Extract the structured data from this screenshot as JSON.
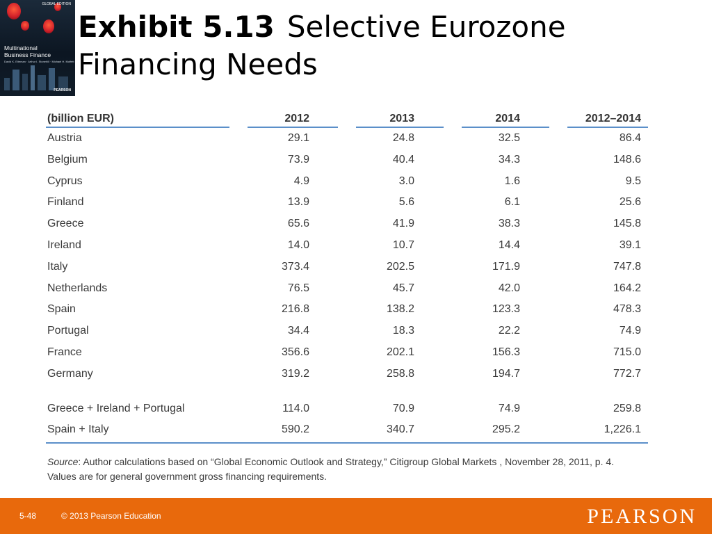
{
  "cover": {
    "edition": "GLOBAL EDITION",
    "title_line1": "Multinational",
    "title_line2": "Business Finance",
    "authors": "David K. Eiteman · Arthur I. Stonehill · Michael H. Moffett",
    "publisher": "PEARSON"
  },
  "title": {
    "bold": "Exhibit 5.13",
    "rest": "Selective Eurozone Financing Needs"
  },
  "table": {
    "headers": [
      "(billion EUR)",
      "2012",
      "2013",
      "2014",
      "2012–2014"
    ],
    "rows": [
      [
        "Austria",
        "29.1",
        "24.8",
        "32.5",
        "86.4"
      ],
      [
        "Belgium",
        "73.9",
        "40.4",
        "34.3",
        "148.6"
      ],
      [
        "Cyprus",
        "4.9",
        "3.0",
        "1.6",
        "9.5"
      ],
      [
        "Finland",
        "13.9",
        "5.6",
        "6.1",
        "25.6"
      ],
      [
        "Greece",
        "65.6",
        "41.9",
        "38.3",
        "145.8"
      ],
      [
        "Ireland",
        "14.0",
        "10.7",
        "14.4",
        "39.1"
      ],
      [
        "Italy",
        "373.4",
        "202.5",
        "171.9",
        "747.8"
      ],
      [
        "Netherlands",
        "76.5",
        "45.7",
        "42.0",
        "164.2"
      ],
      [
        "Spain",
        "216.8",
        "138.2",
        "123.3",
        "478.3"
      ],
      [
        "Portugal",
        "34.4",
        "18.3",
        "22.2",
        "74.9"
      ],
      [
        "France",
        "356.6",
        "202.1",
        "156.3",
        "715.0"
      ],
      [
        "Germany",
        "319.2",
        "258.8",
        "194.7",
        "772.7"
      ]
    ],
    "summary_rows": [
      [
        "Greece + Ireland + Portugal",
        "114.0",
        "70.9",
        "74.9",
        "259.8"
      ],
      [
        "Spain + Italy",
        "590.2",
        "340.7",
        "295.2",
        "1,226.1"
      ]
    ]
  },
  "note": {
    "source_label": "Source",
    "source_text": ": Author calculations based on “Global Economic Outlook and Strategy,” Citigroup Global Markets , November 28, 2011, p. 4.",
    "line2": "Values are for general government gross financing requirements."
  },
  "footer": {
    "page": "5-48",
    "copyright": "© 2013 Pearson Education",
    "logo": "PEARSON"
  }
}
